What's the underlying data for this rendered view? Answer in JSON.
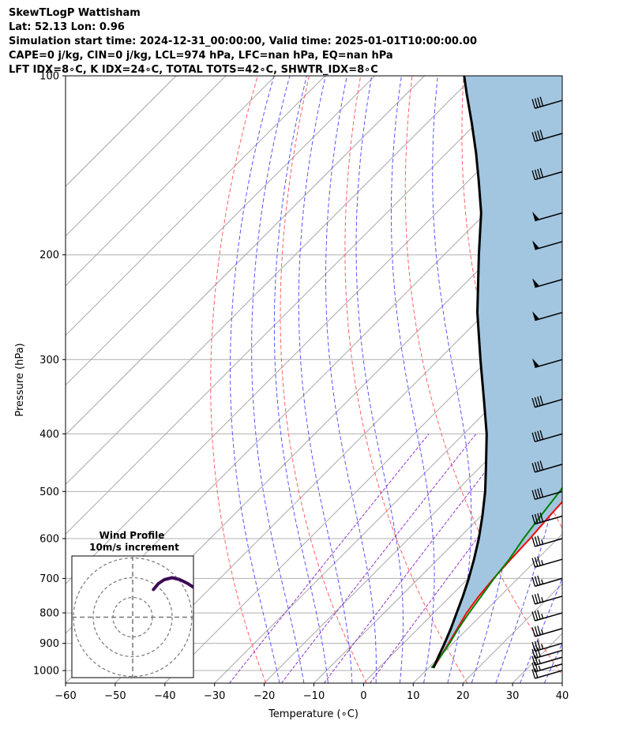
{
  "header": {
    "line1": "SkewTLogP Wattisham",
    "line2": "Lat: 52.13   Lon: 0.96",
    "line3": "Simulation start time: 2024-12-31_00:00:00, Valid time: 2025-01-01T10:00:00.00",
    "line4": "CAPE=0 j/kg, CIN=0 j/kg, LCL=974 hPa, LFC=nan hPa, EQ=nan hPa",
    "line5": "LFT IDX=8∘C, K IDX=24∘C, TOTAL TOTS=42∘C, SHWTR_IDX=8∘C"
  },
  "chart_data": {
    "type": "line",
    "title": "SkewTLogP Wattisham",
    "xlabel": "Temperature (∘C)",
    "ylabel": "Pressure (hPa)",
    "xlim": [
      -60,
      40
    ],
    "ylim": [
      1050,
      100
    ],
    "y_scale": "log",
    "x_ticks": [
      "−60",
      "−50",
      "−40",
      "−30",
      "−20",
      "−10",
      "0",
      "10",
      "20",
      "30",
      "40"
    ],
    "y_ticks": [
      "100",
      "200",
      "300",
      "400",
      "500",
      "600",
      "700",
      "800",
      "900",
      "1000"
    ],
    "grid": true,
    "colors": {
      "temperature": "#ff0000",
      "dewpoint": "#008000",
      "parcel": "#000000",
      "fill": "#a3c6e0",
      "dry_adiabat": "#ff6060",
      "moist_adiabat": "#5555ff",
      "mixing_ratio": "#9933cc",
      "hodograph": "#3d0a55"
    },
    "series": [
      {
        "name": "Temperature",
        "points": [
          [
            11,
            990
          ],
          [
            10.2,
            950
          ],
          [
            9.1,
            900
          ],
          [
            7.9,
            850
          ],
          [
            6.6,
            800
          ],
          [
            5.7,
            750
          ],
          [
            5.1,
            700
          ],
          [
            4.7,
            650
          ],
          [
            4.4,
            600
          ],
          [
            3.8,
            550
          ],
          [
            3.3,
            500
          ],
          [
            2.4,
            450
          ],
          [
            1.5,
            410
          ],
          [
            -0.6,
            360
          ],
          [
            -2.5,
            320
          ],
          [
            -4.6,
            290
          ],
          [
            -7.8,
            260
          ],
          [
            -11,
            230
          ],
          [
            -14,
            205
          ],
          [
            -16,
            190
          ],
          [
            -17,
            180
          ],
          [
            -17.5,
            170
          ],
          [
            -17.2,
            163
          ],
          [
            -16,
            155
          ],
          [
            -14,
            149
          ],
          [
            -10.2,
            139
          ],
          [
            -5,
            127
          ],
          [
            -3,
            120
          ],
          [
            -2.2,
            114
          ],
          [
            -1,
            108
          ],
          [
            0,
            100
          ]
        ]
      },
      {
        "name": "Dewpoint",
        "points": [
          [
            10.6,
            990
          ],
          [
            10.2,
            950
          ],
          [
            9.3,
            900
          ],
          [
            8.1,
            850
          ],
          [
            7.1,
            800
          ],
          [
            6.2,
            750
          ],
          [
            5.2,
            700
          ],
          [
            4.4,
            650
          ],
          [
            3.1,
            600
          ],
          [
            2.0,
            550
          ],
          [
            0.9,
            500
          ],
          [
            -0.5,
            450
          ],
          [
            -1.5,
            410
          ],
          [
            -3.4,
            360
          ],
          [
            -6.7,
            320
          ],
          [
            -9.4,
            300
          ],
          [
            -15,
            290
          ],
          [
            -17,
            260
          ],
          [
            -18.7,
            230
          ],
          [
            -19.6,
            210
          ],
          [
            -21,
            200
          ],
          [
            -21.7,
            185
          ],
          [
            -21.5,
            172
          ],
          [
            -20.2,
            165
          ],
          [
            -18.4,
            160
          ],
          [
            -16.8,
            152
          ],
          [
            -15.2,
            147
          ],
          [
            -15,
            138
          ],
          [
            -15.3,
            131
          ],
          [
            -13.9,
            124
          ],
          [
            -12.5,
            117
          ],
          [
            -11,
            110
          ],
          [
            -9.5,
            103
          ],
          [
            -9,
            100
          ]
        ]
      },
      {
        "name": "Parcel",
        "points": [
          [
            11,
            990
          ],
          [
            9.8,
            950
          ],
          [
            8.3,
            900
          ],
          [
            6.6,
            850
          ],
          [
            4.6,
            800
          ],
          [
            2.5,
            750
          ],
          [
            0.1,
            700
          ],
          [
            -2.7,
            650
          ],
          [
            -5.9,
            600
          ],
          [
            -9.7,
            550
          ],
          [
            -14.1,
            500
          ],
          [
            -19.4,
            450
          ],
          [
            -25.4,
            400
          ],
          [
            -32.9,
            350
          ],
          [
            -41.6,
            300
          ],
          [
            -51.7,
            250
          ],
          [
            -63,
            200
          ],
          [
            -71,
            170
          ],
          [
            -78,
            150
          ],
          [
            -84,
            135
          ],
          [
            -91,
            120
          ],
          [
            -98,
            107
          ],
          [
            -102,
            100
          ]
        ]
      }
    ],
    "wind_barbs": [
      {
        "pressure": 1000,
        "speed_kt": 20
      },
      {
        "pressure": 975,
        "speed_kt": 25
      },
      {
        "pressure": 950,
        "speed_kt": 25
      },
      {
        "pressure": 925,
        "speed_kt": 30
      },
      {
        "pressure": 900,
        "speed_kt": 35
      },
      {
        "pressure": 850,
        "speed_kt": 35
      },
      {
        "pressure": 800,
        "speed_kt": 35
      },
      {
        "pressure": 750,
        "speed_kt": 35
      },
      {
        "pressure": 700,
        "speed_kt": 35
      },
      {
        "pressure": 650,
        "speed_kt": 35
      },
      {
        "pressure": 600,
        "speed_kt": 35
      },
      {
        "pressure": 550,
        "speed_kt": 40
      },
      {
        "pressure": 500,
        "speed_kt": 40
      },
      {
        "pressure": 450,
        "speed_kt": 40
      },
      {
        "pressure": 400,
        "speed_kt": 40
      },
      {
        "pressure": 350,
        "speed_kt": 40
      },
      {
        "pressure": 300,
        "speed_kt": 50
      },
      {
        "pressure": 250,
        "speed_kt": 50
      },
      {
        "pressure": 220,
        "speed_kt": 50
      },
      {
        "pressure": 190,
        "speed_kt": 50
      },
      {
        "pressure": 170,
        "speed_kt": 50
      },
      {
        "pressure": 145,
        "speed_kt": 40
      },
      {
        "pressure": 125,
        "speed_kt": 40
      },
      {
        "pressure": 110,
        "speed_kt": 40
      }
    ],
    "hodograph": {
      "title": "Wind Profile",
      "subtitle": "10m/s increment",
      "rings": [
        1,
        2,
        3
      ],
      "points": [
        [
          1.05,
          -1.4
        ],
        [
          1.3,
          -1.7
        ],
        [
          1.6,
          -1.9
        ],
        [
          2.0,
          -2.0
        ],
        [
          2.4,
          -1.9
        ],
        [
          2.8,
          -1.7
        ],
        [
          3.1,
          -1.5
        ]
      ]
    }
  }
}
